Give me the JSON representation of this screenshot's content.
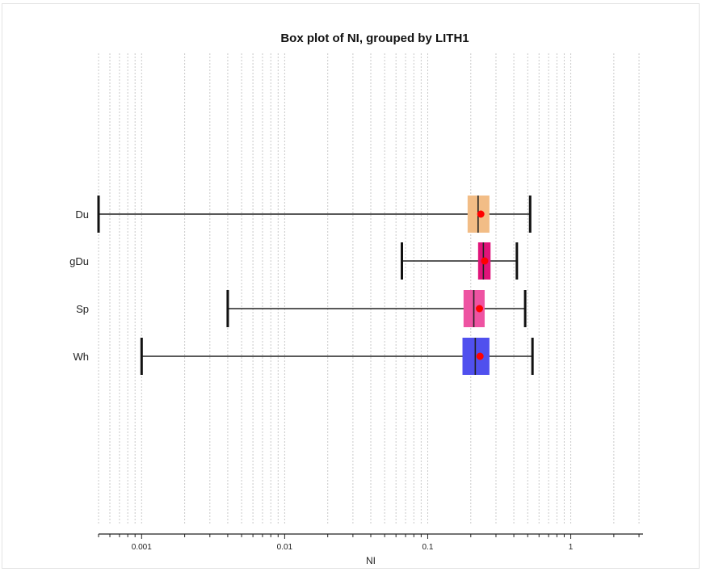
{
  "chart_data": {
    "type": "boxplot",
    "orientation": "horizontal",
    "title": "Box plot of NI, grouped by LITH1",
    "xlabel": "NI",
    "ylabel": "",
    "x_scale": "log",
    "xlim": [
      0.0005,
      3.2
    ],
    "grid": "vertical minor log gridlines, dotted",
    "x_ticks": [
      {
        "value": 0.001,
        "label": "0.001"
      },
      {
        "value": 0.01,
        "label": "0.01"
      },
      {
        "value": 0.1,
        "label": "0.1"
      },
      {
        "value": 1,
        "label": "1"
      }
    ],
    "categories": [
      "Du",
      "gDu",
      "Sp",
      "Wh"
    ],
    "series": [
      {
        "category": "Du",
        "whisker_low": 0.0005,
        "q1": 0.19,
        "median": 0.225,
        "q3": 0.27,
        "whisker_high": 0.52,
        "mean": 0.235,
        "color": "#f2bd86"
      },
      {
        "category": "gDu",
        "whisker_low": 0.066,
        "q1": 0.225,
        "median": 0.245,
        "q3": 0.275,
        "whisker_high": 0.42,
        "mean": 0.25,
        "color": "#e0147a"
      },
      {
        "category": "Sp",
        "whisker_low": 0.004,
        "q1": 0.178,
        "median": 0.21,
        "q3": 0.25,
        "whisker_high": 0.48,
        "mean": 0.23,
        "color": "#ee53a2"
      },
      {
        "category": "Wh",
        "whisker_low": 0.001,
        "q1": 0.175,
        "median": 0.215,
        "q3": 0.27,
        "whisker_high": 0.54,
        "mean": 0.232,
        "color": "#5050ee"
      }
    ],
    "mean_marker_color": "#ff0000"
  }
}
